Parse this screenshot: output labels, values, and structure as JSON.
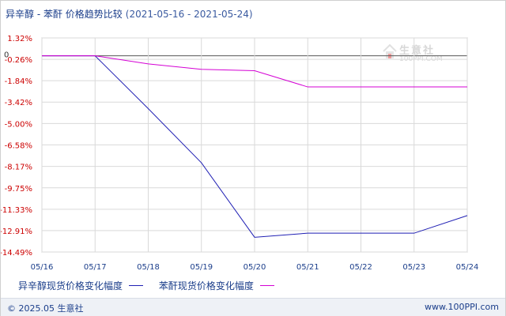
{
  "header": {
    "title": "异辛醇 - 苯酐 价格趋势比较",
    "date_range": "(2021-05-16 - 2021-05-24)"
  },
  "watermark": {
    "brand": "生意社",
    "url": "100PPI.COM",
    "icon": "house-logo-icon"
  },
  "footer": {
    "copyright": "© 2025.05 生意社",
    "url": "www.100PPI.com"
  },
  "colors": {
    "series_1": "#1f1fb4",
    "series_2": "#d400d4",
    "grid": "#d9d9d9",
    "tick_text": "#cc0000",
    "axis_text": "#1a3d8a"
  },
  "chart_data": {
    "type": "line",
    "title": "异辛醇 - 苯酐 价格趋势比较",
    "xlabel": "",
    "ylabel": "",
    "x": [
      "05/16",
      "05/17",
      "05/18",
      "05/19",
      "05/20",
      "05/21",
      "05/22",
      "05/23",
      "05/24"
    ],
    "y_ticks": [
      "1.32%",
      "-0.26%",
      "-1.84%",
      "-3.42%",
      "-5.00%",
      "-6.58%",
      "-8.17%",
      "-9.75%",
      "-11.33%",
      "-12.91%",
      "-14.49%"
    ],
    "y_tick_values": [
      1.32,
      -0.26,
      -1.84,
      -3.42,
      -5.0,
      -6.58,
      -8.17,
      -9.75,
      -11.33,
      -12.91,
      -14.49
    ],
    "zero_label": "0",
    "ylim": [
      -14.49,
      1.32
    ],
    "grid": true,
    "legend_position": "bottom-left",
    "series": [
      {
        "name": "异辛醇现货价格变化幅度",
        "color": "#1f1fb4",
        "values": [
          0,
          0,
          -3.9,
          -7.9,
          -13.4,
          -13.1,
          -13.1,
          -13.1,
          -11.8
        ]
      },
      {
        "name": "苯酐现货价格变化幅度",
        "color": "#d400d4",
        "values": [
          0,
          0,
          -0.6,
          -1.0,
          -1.1,
          -2.3,
          -2.3,
          -2.3,
          -2.3
        ]
      }
    ]
  }
}
